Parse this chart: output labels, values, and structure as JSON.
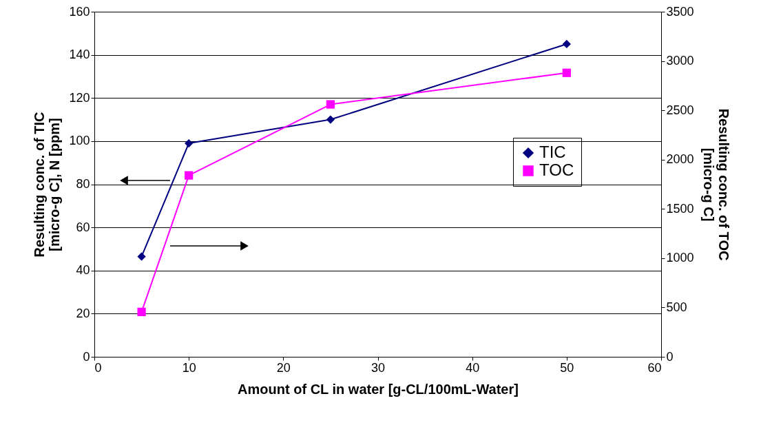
{
  "chart_data": {
    "type": "line",
    "xlabel": "Amount of CL in water [g-CL/100mL-Water]",
    "ylabel": "Resulting conc. of TIC\n[micro-g C], N [ppm]",
    "y2label": "Resulting conc. of TOC\n[micro-g C]",
    "x": [
      5,
      10,
      25,
      50
    ],
    "series": [
      {
        "name": "TIC",
        "color": "#000080",
        "marker": "diamond",
        "values": [
          46.5,
          99,
          110,
          145
        ]
      },
      {
        "name": "TOC",
        "color": "#ff00ff",
        "marker": "square",
        "axis": "y2",
        "values": [
          455,
          1840,
          2560,
          2880
        ]
      }
    ],
    "xlim": [
      0,
      60
    ],
    "xticks": [
      0,
      10,
      20,
      30,
      40,
      50,
      60
    ],
    "ylim": [
      0,
      160
    ],
    "yticks": [
      0,
      20,
      40,
      60,
      80,
      100,
      120,
      140,
      160
    ],
    "y2lim": [
      0,
      3500
    ],
    "y2ticks": [
      0,
      500,
      1000,
      1500,
      2000,
      2500,
      3000,
      3500
    ],
    "grid": "y",
    "legend": "right"
  }
}
